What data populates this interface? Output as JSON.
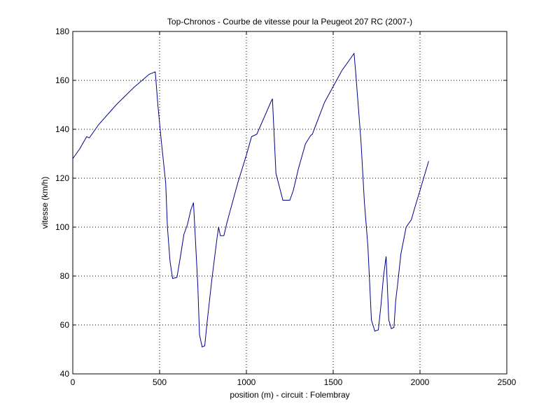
{
  "chart_data": {
    "type": "line",
    "title": "Top-Chronos - Courbe de vitesse pour la Peugeot 207 RC (2007-)",
    "xlabel": "position (m) - circuit : Folembray",
    "ylabel": "vitesse (km/h)",
    "xlim": [
      0,
      2500
    ],
    "ylim": [
      40,
      180
    ],
    "xticks": [
      0,
      500,
      1000,
      1500,
      2000,
      2500
    ],
    "yticks": [
      40,
      60,
      80,
      100,
      120,
      140,
      160,
      180
    ],
    "xtick_labels": [
      "0",
      "500",
      "1000",
      "1500",
      "2000",
      "2500"
    ],
    "ytick_labels": [
      "40",
      "60",
      "80",
      "100",
      "120",
      "140",
      "160",
      "180"
    ],
    "grid": true,
    "line_color": "#00008b",
    "series": [
      {
        "x": [
          0,
          40,
          80,
          95,
          150,
          250,
          350,
          440,
          475,
          490,
          510,
          535,
          545,
          560,
          575,
          600,
          620,
          640,
          660,
          680,
          695,
          705,
          720,
          730,
          745,
          760,
          775,
          800,
          830,
          840,
          850,
          870,
          885,
          900,
          950,
          1000,
          1030,
          1060,
          1100,
          1140,
          1150,
          1170,
          1210,
          1250,
          1270,
          1300,
          1340,
          1370,
          1380,
          1450,
          1550,
          1620,
          1630,
          1660,
          1680,
          1700,
          1720,
          1740,
          1760,
          1775,
          1790,
          1805,
          1820,
          1835,
          1850,
          1860,
          1870,
          1890,
          1920,
          1950,
          1970,
          2000,
          2050
        ],
        "y": [
          128,
          132,
          137,
          136.5,
          142,
          150,
          157,
          162.5,
          163.5,
          150,
          135,
          118,
          100,
          86,
          79,
          79.5,
          88,
          97,
          101,
          107,
          110,
          97,
          76,
          56,
          51,
          51.5,
          62,
          78,
          95,
          100,
          96.5,
          96.5,
          101,
          105,
          118,
          129.5,
          137,
          138,
          144.5,
          151,
          152.5,
          122,
          111,
          111,
          115,
          124,
          134,
          137.5,
          138,
          151,
          164,
          171,
          163,
          135,
          110,
          92,
          62,
          57.5,
          58,
          68,
          80,
          88,
          62,
          58.5,
          59,
          70,
          76,
          89,
          100,
          103,
          108,
          115,
          127
        ]
      }
    ]
  }
}
